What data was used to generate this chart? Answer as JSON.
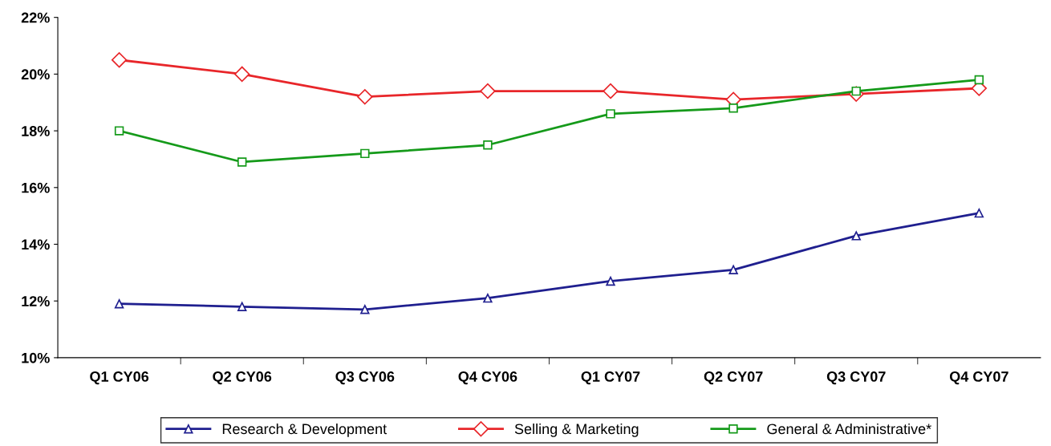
{
  "chart_data": {
    "type": "line",
    "categories": [
      "Q1 CY06",
      "Q2 CY06",
      "Q3 CY06",
      "Q4 CY06",
      "Q1 CY07",
      "Q2 CY07",
      "Q3 CY07",
      "Q4 CY07"
    ],
    "series": [
      {
        "name": "Research & Development",
        "color": "#1f1f8f",
        "marker": "triangle",
        "values": [
          11.9,
          11.8,
          11.7,
          12.1,
          12.7,
          13.1,
          14.3,
          15.1
        ]
      },
      {
        "name": "Selling & Marketing",
        "color": "#e8262a",
        "marker": "diamond",
        "values": [
          20.5,
          20.0,
          19.2,
          19.4,
          19.4,
          19.1,
          19.3,
          19.5
        ]
      },
      {
        "name": "General & Administrative*",
        "color": "#159a1a",
        "marker": "square",
        "values": [
          18.0,
          16.9,
          17.2,
          17.5,
          18.6,
          18.8,
          19.4,
          19.8
        ]
      }
    ],
    "ylim": [
      10,
      22
    ],
    "yticks": [
      {
        "value": 10,
        "label": "10%"
      },
      {
        "value": 12,
        "label": "12%"
      },
      {
        "value": 14,
        "label": "14%"
      },
      {
        "value": 16,
        "label": "16%"
      },
      {
        "value": 18,
        "label": "18%"
      },
      {
        "value": 20,
        "label": "20%"
      },
      {
        "value": 22,
        "label": "22%"
      }
    ],
    "grid": false,
    "legend": "bottom",
    "line_style": "solid"
  }
}
